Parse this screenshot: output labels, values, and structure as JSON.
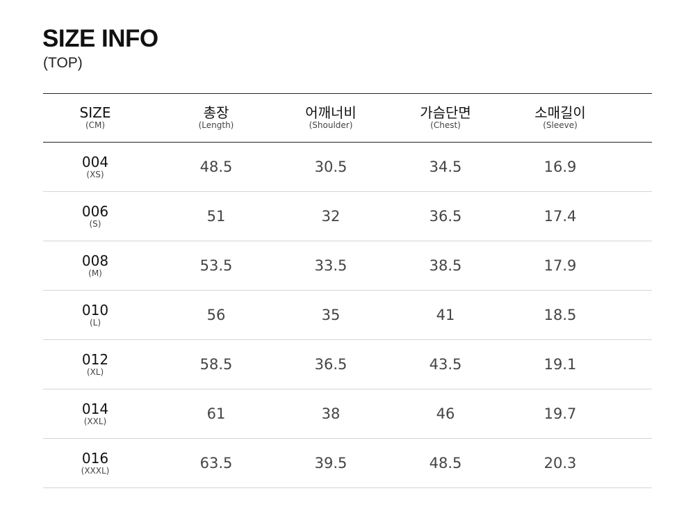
{
  "title": "SIZE INFO",
  "subtitle": "(TOP)",
  "headers": [
    {
      "label": "SIZE",
      "sub": "(CM)"
    },
    {
      "label": "총장",
      "sub": "(Length)"
    },
    {
      "label": "어깨너비",
      "sub": "(Shoulder)"
    },
    {
      "label": "가슴단면",
      "sub": "(Chest)"
    },
    {
      "label": "소매길이",
      "sub": "(Sleeve)"
    }
  ],
  "rows": [
    {
      "size": "004",
      "alias": "(XS)",
      "values": [
        "48.5",
        "30.5",
        "34.5",
        "16.9"
      ]
    },
    {
      "size": "006",
      "alias": "(S)",
      "values": [
        "51",
        "32",
        "36.5",
        "17.4"
      ]
    },
    {
      "size": "008",
      "alias": "(M)",
      "values": [
        "53.5",
        "33.5",
        "38.5",
        "17.9"
      ]
    },
    {
      "size": "010",
      "alias": "(L)",
      "values": [
        "56",
        "35",
        "41",
        "18.5"
      ]
    },
    {
      "size": "012",
      "alias": "(XL)",
      "values": [
        "58.5",
        "36.5",
        "43.5",
        "19.1"
      ]
    },
    {
      "size": "014",
      "alias": "(XXL)",
      "values": [
        "61",
        "38",
        "46",
        "19.7"
      ]
    },
    {
      "size": "016",
      "alias": "(XXXL)",
      "values": [
        "63.5",
        "39.5",
        "48.5",
        "20.3"
      ]
    }
  ]
}
